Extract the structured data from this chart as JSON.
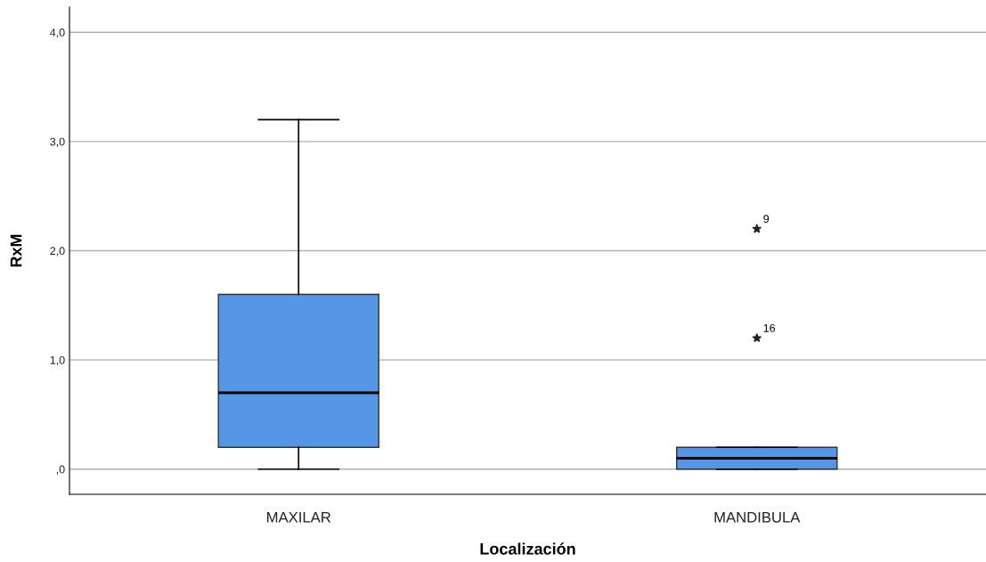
{
  "chart_data": {
    "type": "box",
    "xlabel": "Localización",
    "ylabel": "RxM",
    "categories": [
      "MAXILAR",
      "MANDIBULA"
    ],
    "boxes": [
      {
        "low": 0.0,
        "q1": 0.2,
        "median": 0.7,
        "q3": 1.6,
        "high": 3.2
      },
      {
        "low": 0.0,
        "q1": 0.0,
        "median": 0.1,
        "q3": 0.2,
        "high": 0.2,
        "outliers": [
          1.2,
          2.2
        ]
      }
    ],
    "color": "#5596e6",
    "marker": "star",
    "ylim": [
      -0.23,
      4.23
    ],
    "yticks": [
      {
        "value": 0,
        "label": ",0"
      },
      {
        "value": 1,
        "label": "1,0"
      },
      {
        "value": 2,
        "label": "2,0"
      },
      {
        "value": 3,
        "label": "3,0"
      },
      {
        "value": 4,
        "label": "4,0"
      }
    ],
    "grid": "y",
    "annotations": [
      "16",
      "9"
    ]
  }
}
